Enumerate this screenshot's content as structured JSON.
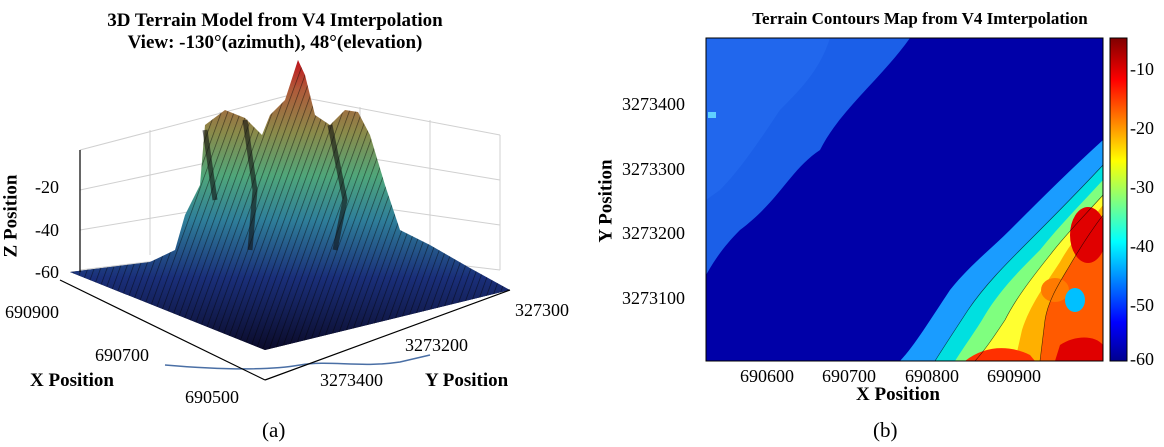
{
  "panel_a": {
    "title_line1": "3D Terrain Model from V4 Imterpolation",
    "title_line2": "View: -130°(azimuth), 48°(elevation)",
    "z_label": "Z Position",
    "x_label": "X Position",
    "y_label": "Y Position",
    "z_ticks": [
      "-20",
      "-40",
      "-60"
    ],
    "x_ticks": [
      "690900",
      "690700",
      "690500"
    ],
    "y_ticks": [
      "327300",
      "3273200",
      "3273400"
    ],
    "caption": "(a)"
  },
  "panel_b": {
    "title": "Terrain Contours Map from V4 Imterpolation",
    "x_label": "X Position",
    "y_label": "Y Position",
    "x_ticks": [
      "690600",
      "690700",
      "690800",
      "690900"
    ],
    "y_ticks": [
      "3273400",
      "3273300",
      "3273200",
      "3273100"
    ],
    "colorbar_ticks": [
      "-10",
      "-20",
      "-30",
      "-40",
      "-50",
      "-60"
    ],
    "caption": "(b)"
  },
  "colors": {
    "deep": "#000090",
    "mid": "#1d5ce6",
    "shallow": "#7fd6ff",
    "high": "#c2121b"
  },
  "chart_data": [
    {
      "type": "surface",
      "title": "3D Terrain Model from V4 Imterpolation",
      "subtitle": "View: -130°(azimuth), 48°(elevation)",
      "xlabel": "X Position",
      "ylabel": "Y Position",
      "zlabel": "Z Position",
      "view": {
        "azimuth": -130,
        "elevation": 48
      },
      "zlim": [
        -60,
        -5
      ]
    },
    {
      "type": "contour",
      "title": "Terrain Contours Map from V4 Imterpolation",
      "xlabel": "X Position",
      "ylabel": "Y Position",
      "xlim": [
        690500,
        691000
      ],
      "ylim": [
        3273000,
        3273500
      ],
      "colorbar": {
        "min": -60,
        "max": -5,
        "ticks": [
          -10,
          -20,
          -30,
          -40,
          -50,
          -60
        ]
      }
    }
  ]
}
